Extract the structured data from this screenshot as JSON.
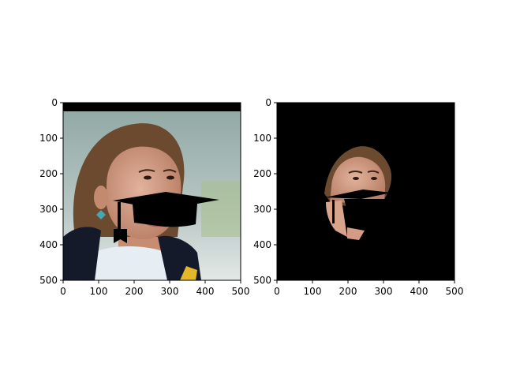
{
  "colors": {
    "background": "#ffffff",
    "axis": "#000000",
    "mask": "#000000",
    "photo_bg_top": "#8fa7a3",
    "photo_bg_bottom": "#d9e2df",
    "hair": "#6b4a30",
    "skin": "#d7a28b",
    "shirt": "#e6eef3",
    "jacket": "#151a2b",
    "yellow": "#e4b72a"
  },
  "chart_data": [
    {
      "type": "image",
      "panel": "left",
      "xlim": [
        0,
        500
      ],
      "ylim": [
        500,
        0
      ],
      "xticks": [
        0,
        100,
        200,
        300,
        400,
        500
      ],
      "yticks": [
        0,
        100,
        200,
        300,
        400,
        500
      ],
      "content": "portrait photo with black graduation-cap overlay"
    },
    {
      "type": "image",
      "panel": "right",
      "xlim": [
        0,
        500
      ],
      "ylim": [
        500,
        0
      ],
      "xticks": [
        0,
        100,
        200,
        300,
        400,
        500
      ],
      "yticks": [
        0,
        100,
        200,
        300,
        400,
        500
      ],
      "content": "segmented face on black background"
    }
  ]
}
